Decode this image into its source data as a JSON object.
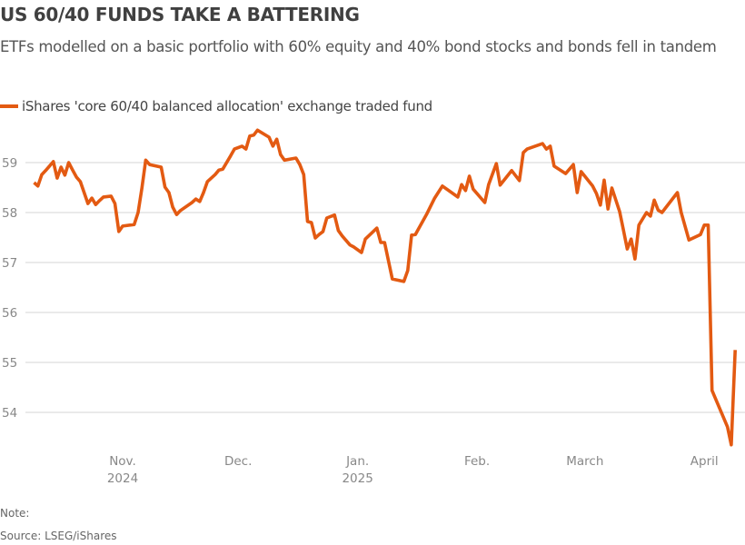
{
  "chart_data": {
    "type": "line",
    "title": "US 60/40 FUNDS TAKE A BATTERING",
    "subtitle": "ETFs modelled on a basic portfolio with 60% equity and 40% bond stocks and bonds fell in tandem",
    "xlabel": "",
    "ylabel": "",
    "ylim": [
      53.3,
      59.8
    ],
    "yticks": [
      54,
      55,
      56,
      57,
      58,
      59
    ],
    "grid": true,
    "legend_placement": "top-left",
    "xticks": [
      {
        "date": "2024-11-01",
        "label": "Nov.",
        "sublabel": "2024"
      },
      {
        "date": "2024-12-01",
        "label": "Dec.",
        "sublabel": ""
      },
      {
        "date": "2025-01-01",
        "label": "Jan.",
        "sublabel": "2025"
      },
      {
        "date": "2025-02-01",
        "label": "Feb.",
        "sublabel": ""
      },
      {
        "date": "2025-03-01",
        "label": "March",
        "sublabel": ""
      },
      {
        "date": "2025-04-01",
        "label": "April",
        "sublabel": ""
      }
    ],
    "series": [
      {
        "name": "iShares 'core 60/40 balanced allocation' exchange traded fund",
        "color": "#e35a12",
        "points": [
          [
            "2024-10-09",
            58.6
          ],
          [
            "2024-10-10",
            58.53
          ],
          [
            "2024-10-11",
            58.76
          ],
          [
            "2024-10-12",
            58.84
          ],
          [
            "2024-10-13",
            58.93
          ],
          [
            "2024-10-14",
            59.02
          ],
          [
            "2024-10-15",
            58.69
          ],
          [
            "2024-10-16",
            58.91
          ],
          [
            "2024-10-17",
            58.75
          ],
          [
            "2024-10-18",
            59.0
          ],
          [
            "2024-10-19",
            58.85
          ],
          [
            "2024-10-20",
            58.71
          ],
          [
            "2024-10-21",
            58.62
          ],
          [
            "2024-10-23",
            58.18
          ],
          [
            "2024-10-24",
            58.29
          ],
          [
            "2024-10-25",
            58.16
          ],
          [
            "2024-10-26",
            58.24
          ],
          [
            "2024-10-27",
            58.31
          ],
          [
            "2024-10-29",
            58.33
          ],
          [
            "2024-10-30",
            58.18
          ],
          [
            "2024-10-31",
            57.62
          ],
          [
            "2024-11-01",
            57.73
          ],
          [
            "2024-11-04",
            57.76
          ],
          [
            "2024-11-05",
            58.0
          ],
          [
            "2024-11-06",
            58.49
          ],
          [
            "2024-11-07",
            59.05
          ],
          [
            "2024-11-08",
            58.96
          ],
          [
            "2024-11-11",
            58.91
          ],
          [
            "2024-11-12",
            58.51
          ],
          [
            "2024-11-13",
            58.4
          ],
          [
            "2024-11-14",
            58.11
          ],
          [
            "2024-11-15",
            57.96
          ],
          [
            "2024-11-16",
            58.04
          ],
          [
            "2024-11-19",
            58.2
          ],
          [
            "2024-11-20",
            58.27
          ],
          [
            "2024-11-21",
            58.22
          ],
          [
            "2024-11-22",
            58.4
          ],
          [
            "2024-11-23",
            58.62
          ],
          [
            "2024-11-25",
            58.76
          ],
          [
            "2024-11-26",
            58.85
          ],
          [
            "2024-11-27",
            58.87
          ],
          [
            "2024-11-29",
            59.13
          ],
          [
            "2024-11-30",
            59.27
          ],
          [
            "2024-12-02",
            59.33
          ],
          [
            "2024-12-03",
            59.27
          ],
          [
            "2024-12-04",
            59.53
          ],
          [
            "2024-12-05",
            59.55
          ],
          [
            "2024-12-06",
            59.65
          ],
          [
            "2024-12-09",
            59.51
          ],
          [
            "2024-12-10",
            59.33
          ],
          [
            "2024-12-11",
            59.47
          ],
          [
            "2024-12-12",
            59.16
          ],
          [
            "2024-12-13",
            59.05
          ],
          [
            "2024-12-16",
            59.09
          ],
          [
            "2024-12-17",
            58.96
          ],
          [
            "2024-12-18",
            58.76
          ],
          [
            "2024-12-19",
            57.82
          ],
          [
            "2024-12-20",
            57.8
          ],
          [
            "2024-12-21",
            57.49
          ],
          [
            "2024-12-22",
            57.56
          ],
          [
            "2024-12-23",
            57.62
          ],
          [
            "2024-12-24",
            57.89
          ],
          [
            "2024-12-26",
            57.95
          ],
          [
            "2024-12-27",
            57.64
          ],
          [
            "2024-12-28",
            57.53
          ],
          [
            "2024-12-30",
            57.35
          ],
          [
            "2024-12-31",
            57.31
          ],
          [
            "2025-01-02",
            57.2
          ],
          [
            "2025-01-03",
            57.47
          ],
          [
            "2025-01-06",
            57.69
          ],
          [
            "2025-01-07",
            57.4
          ],
          [
            "2025-01-08",
            57.4
          ],
          [
            "2025-01-10",
            56.67
          ],
          [
            "2025-01-13",
            56.62
          ],
          [
            "2025-01-14",
            56.84
          ],
          [
            "2025-01-15",
            57.55
          ],
          [
            "2025-01-16",
            57.56
          ],
          [
            "2025-01-19",
            57.98
          ],
          [
            "2025-01-21",
            58.29
          ],
          [
            "2025-01-23",
            58.53
          ],
          [
            "2025-01-27",
            58.31
          ],
          [
            "2025-01-28",
            58.56
          ],
          [
            "2025-01-29",
            58.44
          ],
          [
            "2025-01-30",
            58.73
          ],
          [
            "2025-01-31",
            58.47
          ],
          [
            "2025-02-03",
            58.2
          ],
          [
            "2025-02-04",
            58.56
          ],
          [
            "2025-02-06",
            58.98
          ],
          [
            "2025-02-07",
            58.55
          ],
          [
            "2025-02-10",
            58.84
          ],
          [
            "2025-02-12",
            58.64
          ],
          [
            "2025-02-13",
            59.2
          ],
          [
            "2025-02-14",
            59.27
          ],
          [
            "2025-02-18",
            59.38
          ],
          [
            "2025-02-19",
            59.27
          ],
          [
            "2025-02-20",
            59.33
          ],
          [
            "2025-02-21",
            58.93
          ],
          [
            "2025-02-24",
            58.78
          ],
          [
            "2025-02-26",
            58.96
          ],
          [
            "2025-02-27",
            58.4
          ],
          [
            "2025-02-28",
            58.82
          ],
          [
            "2025-03-03",
            58.53
          ],
          [
            "2025-03-04",
            58.38
          ],
          [
            "2025-03-05",
            58.15
          ],
          [
            "2025-03-06",
            58.65
          ],
          [
            "2025-03-07",
            58.07
          ],
          [
            "2025-03-08",
            58.49
          ],
          [
            "2025-03-10",
            58.02
          ],
          [
            "2025-03-11",
            57.65
          ],
          [
            "2025-03-12",
            57.27
          ],
          [
            "2025-03-13",
            57.47
          ],
          [
            "2025-03-14",
            57.07
          ],
          [
            "2025-03-15",
            57.75
          ],
          [
            "2025-03-17",
            58.0
          ],
          [
            "2025-03-18",
            57.93
          ],
          [
            "2025-03-19",
            58.25
          ],
          [
            "2025-03-20",
            58.05
          ],
          [
            "2025-03-21",
            58.0
          ],
          [
            "2025-03-25",
            58.4
          ],
          [
            "2025-03-26",
            58.0
          ],
          [
            "2025-03-28",
            57.45
          ],
          [
            "2025-03-31",
            57.56
          ],
          [
            "2025-04-01",
            57.75
          ],
          [
            "2025-04-02",
            57.75
          ],
          [
            "2025-04-03",
            54.44
          ],
          [
            "2025-04-07",
            53.71
          ],
          [
            "2025-04-08",
            53.35
          ],
          [
            "2025-04-09",
            55.25
          ]
        ]
      }
    ]
  },
  "footer": {
    "note": "Note:",
    "source": "Source: LSEG/iShares"
  }
}
